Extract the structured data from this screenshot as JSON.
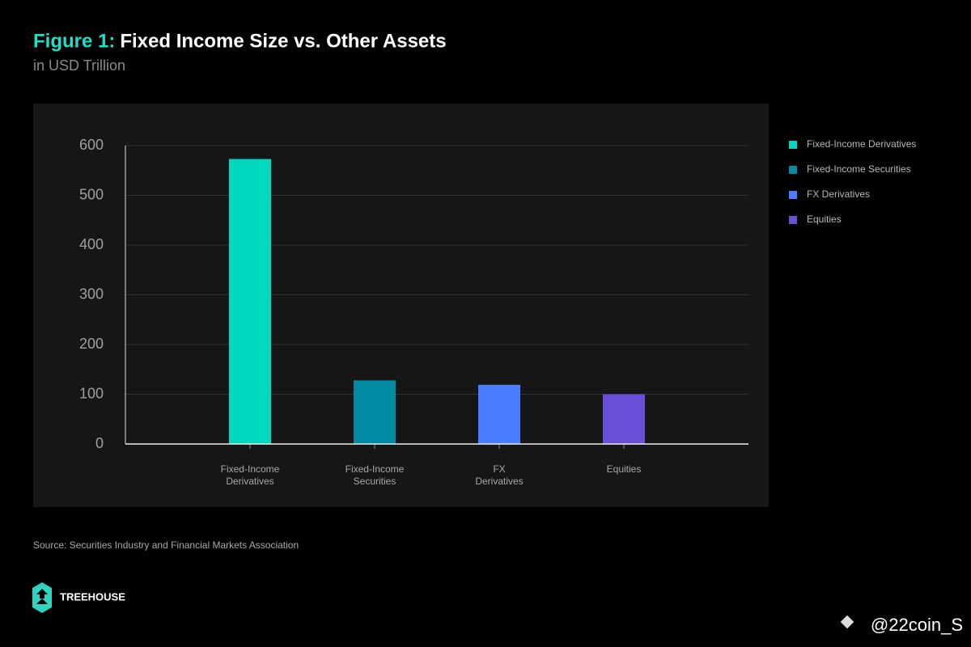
{
  "chart_data": {
    "type": "bar",
    "figure_label": "Figure 1:",
    "title": "Fixed Income Size vs. Other Assets",
    "subtitle": "in USD Trillion",
    "categories": [
      "Fixed-Income Derivatives",
      "Fixed-Income Securities",
      "FX Derivatives",
      "Equities"
    ],
    "values": [
      573,
      128,
      119,
      100
    ],
    "colors": [
      "#00d9c0",
      "#008ba3",
      "#4a7cff",
      "#6b4fd8"
    ],
    "ylim": [
      0,
      600
    ],
    "yticks": [
      0,
      100,
      200,
      300,
      400,
      500,
      600
    ],
    "grid": true,
    "legend": "right",
    "source": "Source: Securities Industry and Financial Markets Association"
  },
  "footer": {
    "brand": "TREEHOUSE",
    "watermark": "@22coin_S"
  }
}
